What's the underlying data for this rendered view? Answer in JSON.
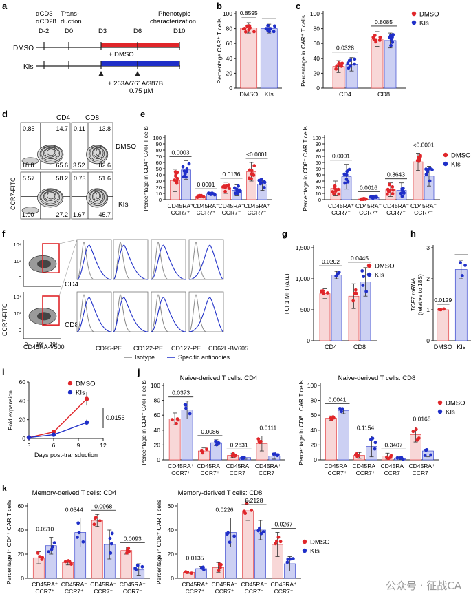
{
  "colors": {
    "dmso": "#e0262a",
    "kis": "#1f2fc8",
    "dmso_fill": "#f8d7d7",
    "kis_fill": "#ccd0f3",
    "gray": "#888"
  },
  "legend": {
    "dmso": "DMSO",
    "kis": "KIs"
  },
  "panel_a": {
    "letter": "a",
    "top_labels": [
      "αCD3",
      "αCD28"
    ],
    "days": [
      "D-2",
      "D0",
      "D3",
      "D6",
      "D10"
    ],
    "transduction": [
      "Trans-",
      "duction"
    ],
    "phenotypic": [
      "Phenotypic",
      "characterization"
    ],
    "rows": [
      "DMSO",
      "KIs"
    ],
    "plus_dmso": "+ DMSO",
    "kis_note": [
      "+ 263A/761A/387B",
      "0.75 µM"
    ]
  },
  "panel_b": {
    "letter": "b",
    "ylabel": "Percentage CAR⁺ T cells",
    "pvalue": "0.8595",
    "yticks": [
      "0",
      "20",
      "40",
      "60",
      "80",
      "100"
    ]
  },
  "panel_c": {
    "letter": "c",
    "ylabel": "Percentage in CAR⁺ T cells",
    "pvalues": [
      "0.0328",
      "0.8085"
    ],
    "yticks": [
      "0",
      "20",
      "40",
      "60",
      "80",
      "100"
    ],
    "groups": [
      "CD4",
      "CD8"
    ]
  },
  "panel_d": {
    "letter": "d",
    "cols": [
      "CD4",
      "CD8"
    ],
    "rows": [
      "DMSO",
      "KIs"
    ],
    "ylabel": "CCR7-FITC",
    "xlabel": "CD45RA-PE",
    "quads": [
      {
        "tl": "0.85",
        "tr": "14.7",
        "bl": "18.8",
        "br": "65.6"
      },
      {
        "tl": "0.11",
        "tr": "13.8",
        "bl": "3.52",
        "br": "82.6"
      },
      {
        "tl": "5.57",
        "tr": "58.2",
        "bl": "1.00",
        "br": "27.2"
      },
      {
        "tl": "0.73",
        "tr": "51.6",
        "bl": "1.67",
        "br": "45.7"
      }
    ]
  },
  "panel_e": {
    "letter": "e",
    "left": {
      "ylabel": "Percentage in CD4⁺ CAR T cells",
      "pvalues": [
        "0.0003",
        "0.0001",
        "0.0136",
        "<0.0001"
      ]
    },
    "right": {
      "ylabel": "Percentage in CD8⁺ CAR T cells",
      "pvalues": [
        "0.0001",
        "0.0016",
        "0.3643",
        "<0.0001"
      ]
    },
    "yticks": [
      "0",
      "10",
      "20",
      "30",
      "40",
      "50",
      "60",
      "70",
      "80",
      "90",
      "100"
    ],
    "cats": [
      [
        "CD45RA⁺",
        "CCR7⁺"
      ],
      [
        "CD45RA⁻",
        "CCR7⁺"
      ],
      [
        "CD45RA⁻",
        "CCR7⁻"
      ],
      [
        "CD45RA⁺",
        "CCR7⁻"
      ]
    ]
  },
  "panel_f": {
    "letter": "f",
    "rows": [
      "CD4",
      "CD8"
    ],
    "ylabel": "CCR7-FITC",
    "xlabel": "CD45RA-V500",
    "yticks": [
      "10⁴",
      "10³",
      "0"
    ],
    "xticks": [
      "0",
      "10³",
      "10⁴"
    ],
    "markers": [
      "CD95-PE",
      "CD122-PE",
      "CD127-PE",
      "CD62L-BV605"
    ],
    "legend": [
      "Isotype",
      "Specific antibodies"
    ]
  },
  "panel_g": {
    "letter": "g",
    "ylabel": "TCF1 MFI (a.u.)",
    "pvalues": [
      "0.0202",
      "0.0445"
    ],
    "yticks": [
      "0",
      "500",
      "1,000",
      "1,500"
    ],
    "groups": [
      "CD4",
      "CD8"
    ]
  },
  "panel_h": {
    "letter": "h",
    "ylabel": [
      "TCF7 mRNA",
      "(relative to 18S)"
    ],
    "pvalue": "0.0129",
    "yticks": [
      "0",
      "1",
      "2",
      "3"
    ],
    "groups": [
      "DMSO",
      "KIs"
    ]
  },
  "panel_i": {
    "letter": "i",
    "ylabel": "Fold expansion",
    "xlabel": "Days post-transduction",
    "pvalue": "0.0156",
    "yticks": [
      "0",
      "20",
      "40",
      "60"
    ],
    "xticks": [
      "3",
      "6",
      "9",
      "12"
    ]
  },
  "panel_j": {
    "letter": "j",
    "left": {
      "title": "Naive-derived T cells: CD4",
      "ylabel": "Percentage in CD4⁺ CAR T cells",
      "pvalues": [
        "0.0373",
        "0.0086",
        "0.2631",
        "0.0111"
      ]
    },
    "right": {
      "title": "Naive-derived T cells: CD8",
      "ylabel": "Percentage in CD8⁺ CAR T cells",
      "pvalues": [
        "0.0041",
        "0.1154",
        "0.3407",
        "0.0168"
      ]
    },
    "yticks": [
      "0",
      "20",
      "40",
      "60",
      "80",
      "100"
    ]
  },
  "panel_k": {
    "letter": "k",
    "left": {
      "title": "Memory-derived T cells: CD4",
      "ylabel": "Percentage in CD4⁺ CAR T cells",
      "pvalues": [
        "0.0510",
        "0.0344",
        "0.0968",
        "0.0093"
      ]
    },
    "right": {
      "title": "Memory-derived T cells: CD8",
      "ylabel": "Percentage in CD8⁺ CAR T cells",
      "pvalues": [
        "0.0135",
        "0.0226",
        "0.2128",
        "0.0267"
      ]
    },
    "yticks": [
      "0",
      "20",
      "40",
      "60"
    ]
  },
  "chart_data": [
    {
      "type": "bar",
      "id": "b",
      "categories": [
        "DMSO",
        "KIs"
      ],
      "values": [
        81,
        80
      ],
      "errors": [
        7,
        6
      ],
      "ylim": [
        0,
        100
      ],
      "ylabel": "Percentage CAR⁺ T cells"
    },
    {
      "type": "bar",
      "id": "c",
      "categories": [
        "CD4",
        "CD8"
      ],
      "series": [
        {
          "name": "DMSO",
          "values": [
            29,
            66
          ],
          "errors": [
            8,
            10
          ]
        },
        {
          "name": "KIs",
          "values": [
            32,
            64
          ],
          "errors": [
            9,
            10
          ]
        }
      ],
      "ylim": [
        0,
        100
      ],
      "ylabel": "Percentage in CAR⁺ T cells"
    },
    {
      "type": "bar",
      "id": "e-left",
      "categories": [
        "CD45RA⁺ CCR7⁺",
        "CD45RA⁻ CCR7⁺",
        "CD45RA⁻ CCR7⁻",
        "CD45RA⁺ CCR7⁻"
      ],
      "series": [
        {
          "name": "DMSO",
          "values": [
            31,
            5,
            19,
            45
          ],
          "errors": [
            18,
            2,
            9,
            15
          ]
        },
        {
          "name": "KIs",
          "values": [
            48,
            9,
            15,
            25
          ],
          "errors": [
            15,
            2,
            9,
            10
          ]
        }
      ],
      "ylim": [
        0,
        100
      ],
      "ylabel": "Percentage in CD4⁺ CAR T cells"
    },
    {
      "type": "bar",
      "id": "e-right",
      "categories": [
        "CD45RA⁺ CCR7⁺",
        "CD45RA⁻ CCR7⁺",
        "CD45RA⁻ CCR7⁻",
        "CD45RA⁺ CCR7⁻"
      ],
      "series": [
        {
          "name": "DMSO",
          "values": [
            18,
            1,
            16,
            61
          ],
          "errors": [
            12,
            1,
            11,
            14
          ]
        },
        {
          "name": "KIs",
          "values": [
            37,
            4,
            15,
            38
          ],
          "errors": [
            20,
            2,
            12,
            16
          ]
        }
      ],
      "ylim": [
        0,
        100
      ],
      "ylabel": "Percentage in CD8⁺ CAR T cells"
    },
    {
      "type": "bar",
      "id": "g",
      "categories": [
        "CD4",
        "CD8"
      ],
      "series": [
        {
          "name": "DMSO",
          "values": [
            760,
            720
          ],
          "errors": [
            80,
            200
          ]
        },
        {
          "name": "KIs",
          "values": [
            1060,
            950
          ],
          "errors": [
            60,
            230
          ]
        }
      ],
      "ylim": [
        0,
        1500
      ],
      "ylabel": "TCF1 MFI (a.u.)"
    },
    {
      "type": "bar",
      "id": "h",
      "categories": [
        "DMSO",
        "KIs"
      ],
      "values": [
        1.0,
        2.3
      ],
      "errors": [
        0,
        0.3
      ],
      "ylim": [
        0,
        3
      ],
      "ylabel": "TCF7 mRNA (relative to 18S)"
    },
    {
      "type": "line",
      "id": "i",
      "x": [
        3,
        6,
        10
      ],
      "series": [
        {
          "name": "DMSO",
          "values": [
            1,
            7,
            42
          ],
          "errors": [
            0,
            1,
            7
          ]
        },
        {
          "name": "KIs",
          "values": [
            1,
            4,
            17
          ],
          "errors": [
            0,
            0.5,
            3
          ]
        }
      ],
      "xlim": [
        3,
        12
      ],
      "ylim": [
        0,
        60
      ],
      "xlabel": "Days post-transduction",
      "ylabel": "Fold expansion"
    },
    {
      "type": "bar",
      "id": "j-left",
      "categories": [
        "CD45RA⁺ CCR7⁺",
        "CD45RA⁻ CCR7⁺",
        "CD45RA⁻ CCR7⁻",
        "CD45RA⁺ CCR7⁻"
      ],
      "series": [
        {
          "name": "DMSO",
          "values": [
            55,
            12,
            6,
            22
          ],
          "errors": [
            8,
            4,
            3,
            10
          ]
        },
        {
          "name": "KIs",
          "values": [
            67,
            23,
            3,
            5
          ],
          "errors": [
            12,
            4,
            2,
            4
          ]
        }
      ],
      "ylim": [
        0,
        100
      ],
      "title": "Naive-derived T cells: CD4"
    },
    {
      "type": "bar",
      "id": "j-right",
      "categories": [
        "CD45RA⁺ CCR7⁺",
        "CD45RA⁻ CCR7⁺",
        "CD45RA⁻ CCR7⁻",
        "CD45RA⁺ CCR7⁻"
      ],
      "series": [
        {
          "name": "DMSO",
          "values": [
            56,
            6,
            5,
            34
          ],
          "errors": [
            3,
            4,
            4,
            10
          ]
        },
        {
          "name": "KIs",
          "values": [
            66,
            18,
            2,
            12
          ],
          "errors": [
            4,
            14,
            2,
            8
          ]
        }
      ],
      "ylim": [
        0,
        100
      ],
      "title": "Naive-derived T cells: CD8"
    },
    {
      "type": "bar",
      "id": "k-left",
      "categories": [
        "CD45RA⁺ CCR7⁺",
        "CD45RA⁻ CCR7⁺",
        "CD45RA⁻ CCR7⁻",
        "CD45RA⁺ CCR7⁻"
      ],
      "series": [
        {
          "name": "DMSO",
          "values": [
            17,
            13,
            48,
            23
          ],
          "errors": [
            5,
            2,
            5,
            3
          ]
        },
        {
          "name": "KIs",
          "values": [
            27,
            38,
            28,
            7
          ],
          "errors": [
            7,
            12,
            12,
            5
          ]
        }
      ],
      "ylim": [
        0,
        60
      ],
      "title": "Memory-derived T cells: CD4"
    },
    {
      "type": "bar",
      "id": "k-right",
      "categories": [
        "CD45RA⁺ CCR7⁺",
        "CD45RA⁻ CCR7⁺",
        "CD45RA⁻ CCR7⁻",
        "CD45RA⁺ CCR7⁻"
      ],
      "series": [
        {
          "name": "DMSO",
          "values": [
            5,
            9,
            56,
            28
          ],
          "errors": [
            1,
            4,
            8,
            10
          ]
        },
        {
          "name": "KIs",
          "values": [
            8,
            38,
            40,
            12
          ],
          "errors": [
            2,
            12,
            8,
            6
          ]
        }
      ],
      "ylim": [
        0,
        60
      ],
      "title": "Memory-derived T cells: CD8"
    }
  ],
  "watermark": "公众号 · 征战CA"
}
